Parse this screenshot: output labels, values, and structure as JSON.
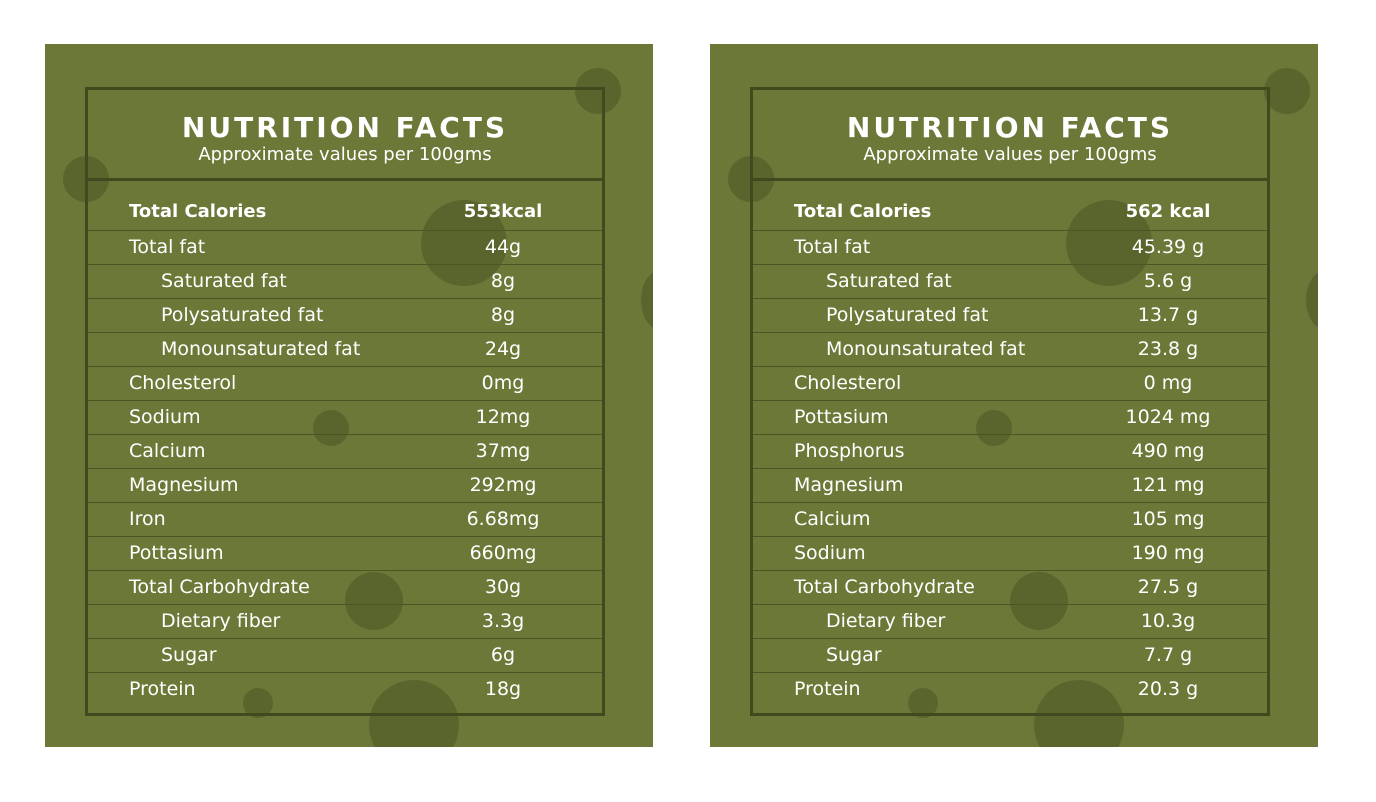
{
  "panels": [
    {
      "title": "NUTRITION FACTS",
      "subtitle": "Approximate values per 100gms",
      "rows": [
        {
          "label": "Total Calories",
          "value": "553kcal"
        },
        {
          "label": "Total fat",
          "value": "44g"
        },
        {
          "label": "Saturated fat",
          "value": "8g"
        },
        {
          "label": "Polysaturated fat",
          "value": "8g"
        },
        {
          "label": "Monounsaturated fat",
          "value": "24g"
        },
        {
          "label": "Cholesterol",
          "value": "0mg"
        },
        {
          "label": "Sodium",
          "value": "12mg"
        },
        {
          "label": "Calcium",
          "value": "37mg"
        },
        {
          "label": "Magnesium",
          "value": "292mg"
        },
        {
          "label": "Iron",
          "value": "6.68mg"
        },
        {
          "label": "Pottasium",
          "value": "660mg"
        },
        {
          "label": "Total Carbohydrate",
          "value": "30g"
        },
        {
          "label": "Dietary fiber",
          "value": "3.3g"
        },
        {
          "label": "Sugar",
          "value": "6g"
        },
        {
          "label": "Protein",
          "value": "18g"
        }
      ]
    },
    {
      "title": "NUTRITION FACTS",
      "subtitle": "Approximate values per 100gms",
      "rows": [
        {
          "label": "Total Calories",
          "value": "562 kcal"
        },
        {
          "label": "Total fat",
          "value": "45.39 g"
        },
        {
          "label": "Saturated fat",
          "value": "5.6 g"
        },
        {
          "label": "Polysaturated fat",
          "value": "13.7 g"
        },
        {
          "label": "Monounsaturated fat",
          "value": "23.8 g"
        },
        {
          "label": "Cholesterol",
          "value": "0 mg"
        },
        {
          "label": "Pottasium",
          "value": "1024 mg"
        },
        {
          "label": "Phosphorus",
          "value": "490 mg"
        },
        {
          "label": "Magnesium",
          "value": "121 mg"
        },
        {
          "label": "Calcium",
          "value": "105 mg"
        },
        {
          "label": "Sodium",
          "value": "190 mg"
        },
        {
          "label": "Total Carbohydrate",
          "value": "27.5 g"
        },
        {
          "label": "Dietary fiber",
          "value": "10.3g"
        },
        {
          "label": "Sugar",
          "value": "7.7 g"
        },
        {
          "label": "Protein",
          "value": "20.3 g"
        }
      ]
    }
  ],
  "colors": {
    "panel_bg": "#6b7837",
    "border": "#3f4a1f",
    "text": "#ffffff"
  }
}
